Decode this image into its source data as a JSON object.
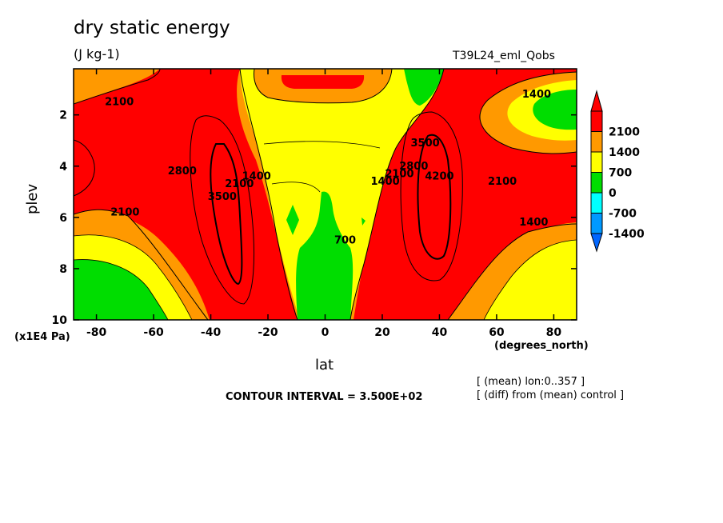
{
  "chart_data": {
    "type": "heatmap",
    "subtype": "filled-contour",
    "title": "dry static energy",
    "units": "(J kg-1)",
    "run_label": "T39L24_eml_Qobs",
    "xlabel": "lat",
    "x_units": "(degrees_north)",
    "ylabel": "plev",
    "y_units": "(x1E4 Pa)",
    "x_ticks": [
      "-80",
      "-60",
      "-40",
      "-20",
      "0",
      "20",
      "40",
      "60",
      "80"
    ],
    "y_ticks": [
      "2",
      "4",
      "6",
      "8",
      "10"
    ],
    "xlim": [
      -88,
      88
    ],
    "ylim": [
      0.2,
      10
    ],
    "y_inverted": true,
    "contour_interval_text": "CONTOUR INTERVAL = 3.500E+02",
    "note_1": "[ (mean) lon:0..357 ]",
    "note_2": "[ (diff) from (mean) control ]",
    "colorbar": [
      {
        "label": "2100",
        "color": "#ff0000"
      },
      {
        "label": "1400",
        "color": "#ff9900"
      },
      {
        "label": "700",
        "color": "#ffff00"
      },
      {
        "label": "0",
        "color": "#00dd00"
      },
      {
        "label": "-700",
        "color": "#00ffff"
      },
      {
        "label": "-1400",
        "color": "#0099ff"
      }
    ],
    "colorbar_extend_top": "#ff0000",
    "colorbar_extend_bottom": "#0066ff",
    "contour_labels": [
      {
        "text": "2100",
        "lat": -72,
        "p": 1.5
      },
      {
        "text": "2800",
        "lat": -50,
        "p": 4.2
      },
      {
        "text": "3500",
        "lat": -36,
        "p": 5.2
      },
      {
        "text": "2100",
        "lat": -30,
        "p": 4.7
      },
      {
        "text": "1400",
        "lat": -24,
        "p": 4.4
      },
      {
        "text": "2100",
        "lat": -70,
        "p": 5.8
      },
      {
        "text": "1400",
        "lat": 21,
        "p": 4.6
      },
      {
        "text": "2100",
        "lat": 26,
        "p": 4.3
      },
      {
        "text": "2800",
        "lat": 31,
        "p": 4.0
      },
      {
        "text": "3500",
        "lat": 35,
        "p": 3.1
      },
      {
        "text": "4200",
        "lat": 40,
        "p": 4.4
      },
      {
        "text": "2100",
        "lat": 62,
        "p": 4.6
      },
      {
        "text": "1400",
        "lat": 73,
        "p": 6.2
      },
      {
        "text": "1400",
        "lat": 74,
        "p": 1.2
      },
      {
        "text": "700",
        "lat": 7,
        "p": 6.9
      }
    ]
  }
}
